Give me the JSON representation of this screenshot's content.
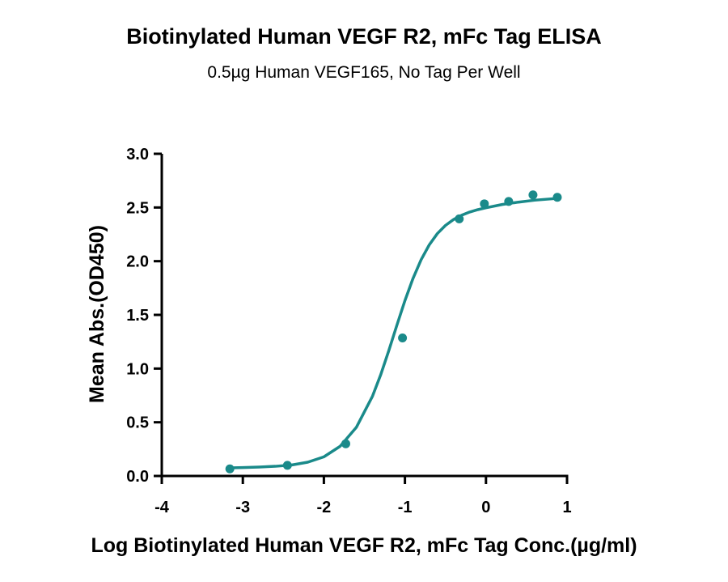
{
  "chart_data": {
    "type": "scatter",
    "title": "Biotinylated Human VEGF R2, mFc Tag ELISA",
    "subtitle": "0.5µg Human VEGF165, No Tag Per Well",
    "xlabel": "Log Biotinylated Human VEGF R2, mFc Tag Conc.(µg/ml)",
    "ylabel": "Mean Abs.(OD450)",
    "xlim": [
      -4,
      1
    ],
    "ylim": [
      0,
      3
    ],
    "xticks": [
      "-4",
      "-3",
      "-2",
      "-1",
      "0",
      "1"
    ],
    "yticks": [
      "0.0",
      "0.5",
      "1.0",
      "1.5",
      "2.0",
      "2.5",
      "3.0"
    ],
    "grid": false,
    "series_color": "#1a8a8a",
    "points": {
      "x": [
        -3.16,
        -2.45,
        -1.73,
        -1.03,
        -0.33,
        -0.02,
        0.28,
        0.58,
        0.88
      ],
      "y": [
        0.066,
        0.099,
        0.3,
        1.285,
        2.394,
        2.534,
        2.556,
        2.617,
        2.595
      ]
    },
    "fit_curve": {
      "x": [
        -3.16,
        -3.0,
        -2.8,
        -2.6,
        -2.4,
        -2.2,
        -2.0,
        -1.8,
        -1.6,
        -1.4,
        -1.3,
        -1.2,
        -1.1,
        -1.0,
        -0.9,
        -0.8,
        -0.7,
        -0.6,
        -0.5,
        -0.4,
        -0.3,
        -0.2,
        -0.1,
        0.0,
        0.2,
        0.4,
        0.6,
        0.88
      ],
      "y": [
        0.075,
        0.078,
        0.083,
        0.09,
        0.102,
        0.128,
        0.178,
        0.276,
        0.452,
        0.743,
        0.94,
        1.165,
        1.402,
        1.633,
        1.84,
        2.014,
        2.152,
        2.257,
        2.333,
        2.388,
        2.428,
        2.458,
        2.48,
        2.497,
        2.528,
        2.55,
        2.568,
        2.585
      ]
    }
  }
}
